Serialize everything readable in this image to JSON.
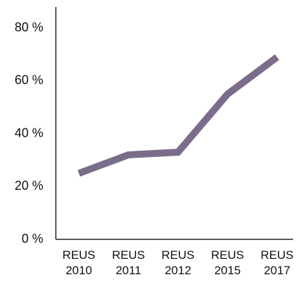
{
  "chart_data": {
    "type": "line",
    "categories": [
      "REUS 2010",
      "REUS 2011",
      "REUS 2012",
      "REUS 2015",
      "REUS 2017"
    ],
    "series": [
      {
        "color": "#7b6c8a",
        "values": [
          25,
          32,
          33,
          55,
          69
        ]
      }
    ],
    "ylim": [
      0,
      88
    ],
    "yticks": [
      {
        "value": 0,
        "label": "0 %"
      },
      {
        "value": 20,
        "label": "20 %"
      },
      {
        "value": 40,
        "label": "40 %"
      },
      {
        "value": 60,
        "label": "60 %"
      },
      {
        "value": 80,
        "label": "80 %"
      }
    ],
    "grid": false
  }
}
